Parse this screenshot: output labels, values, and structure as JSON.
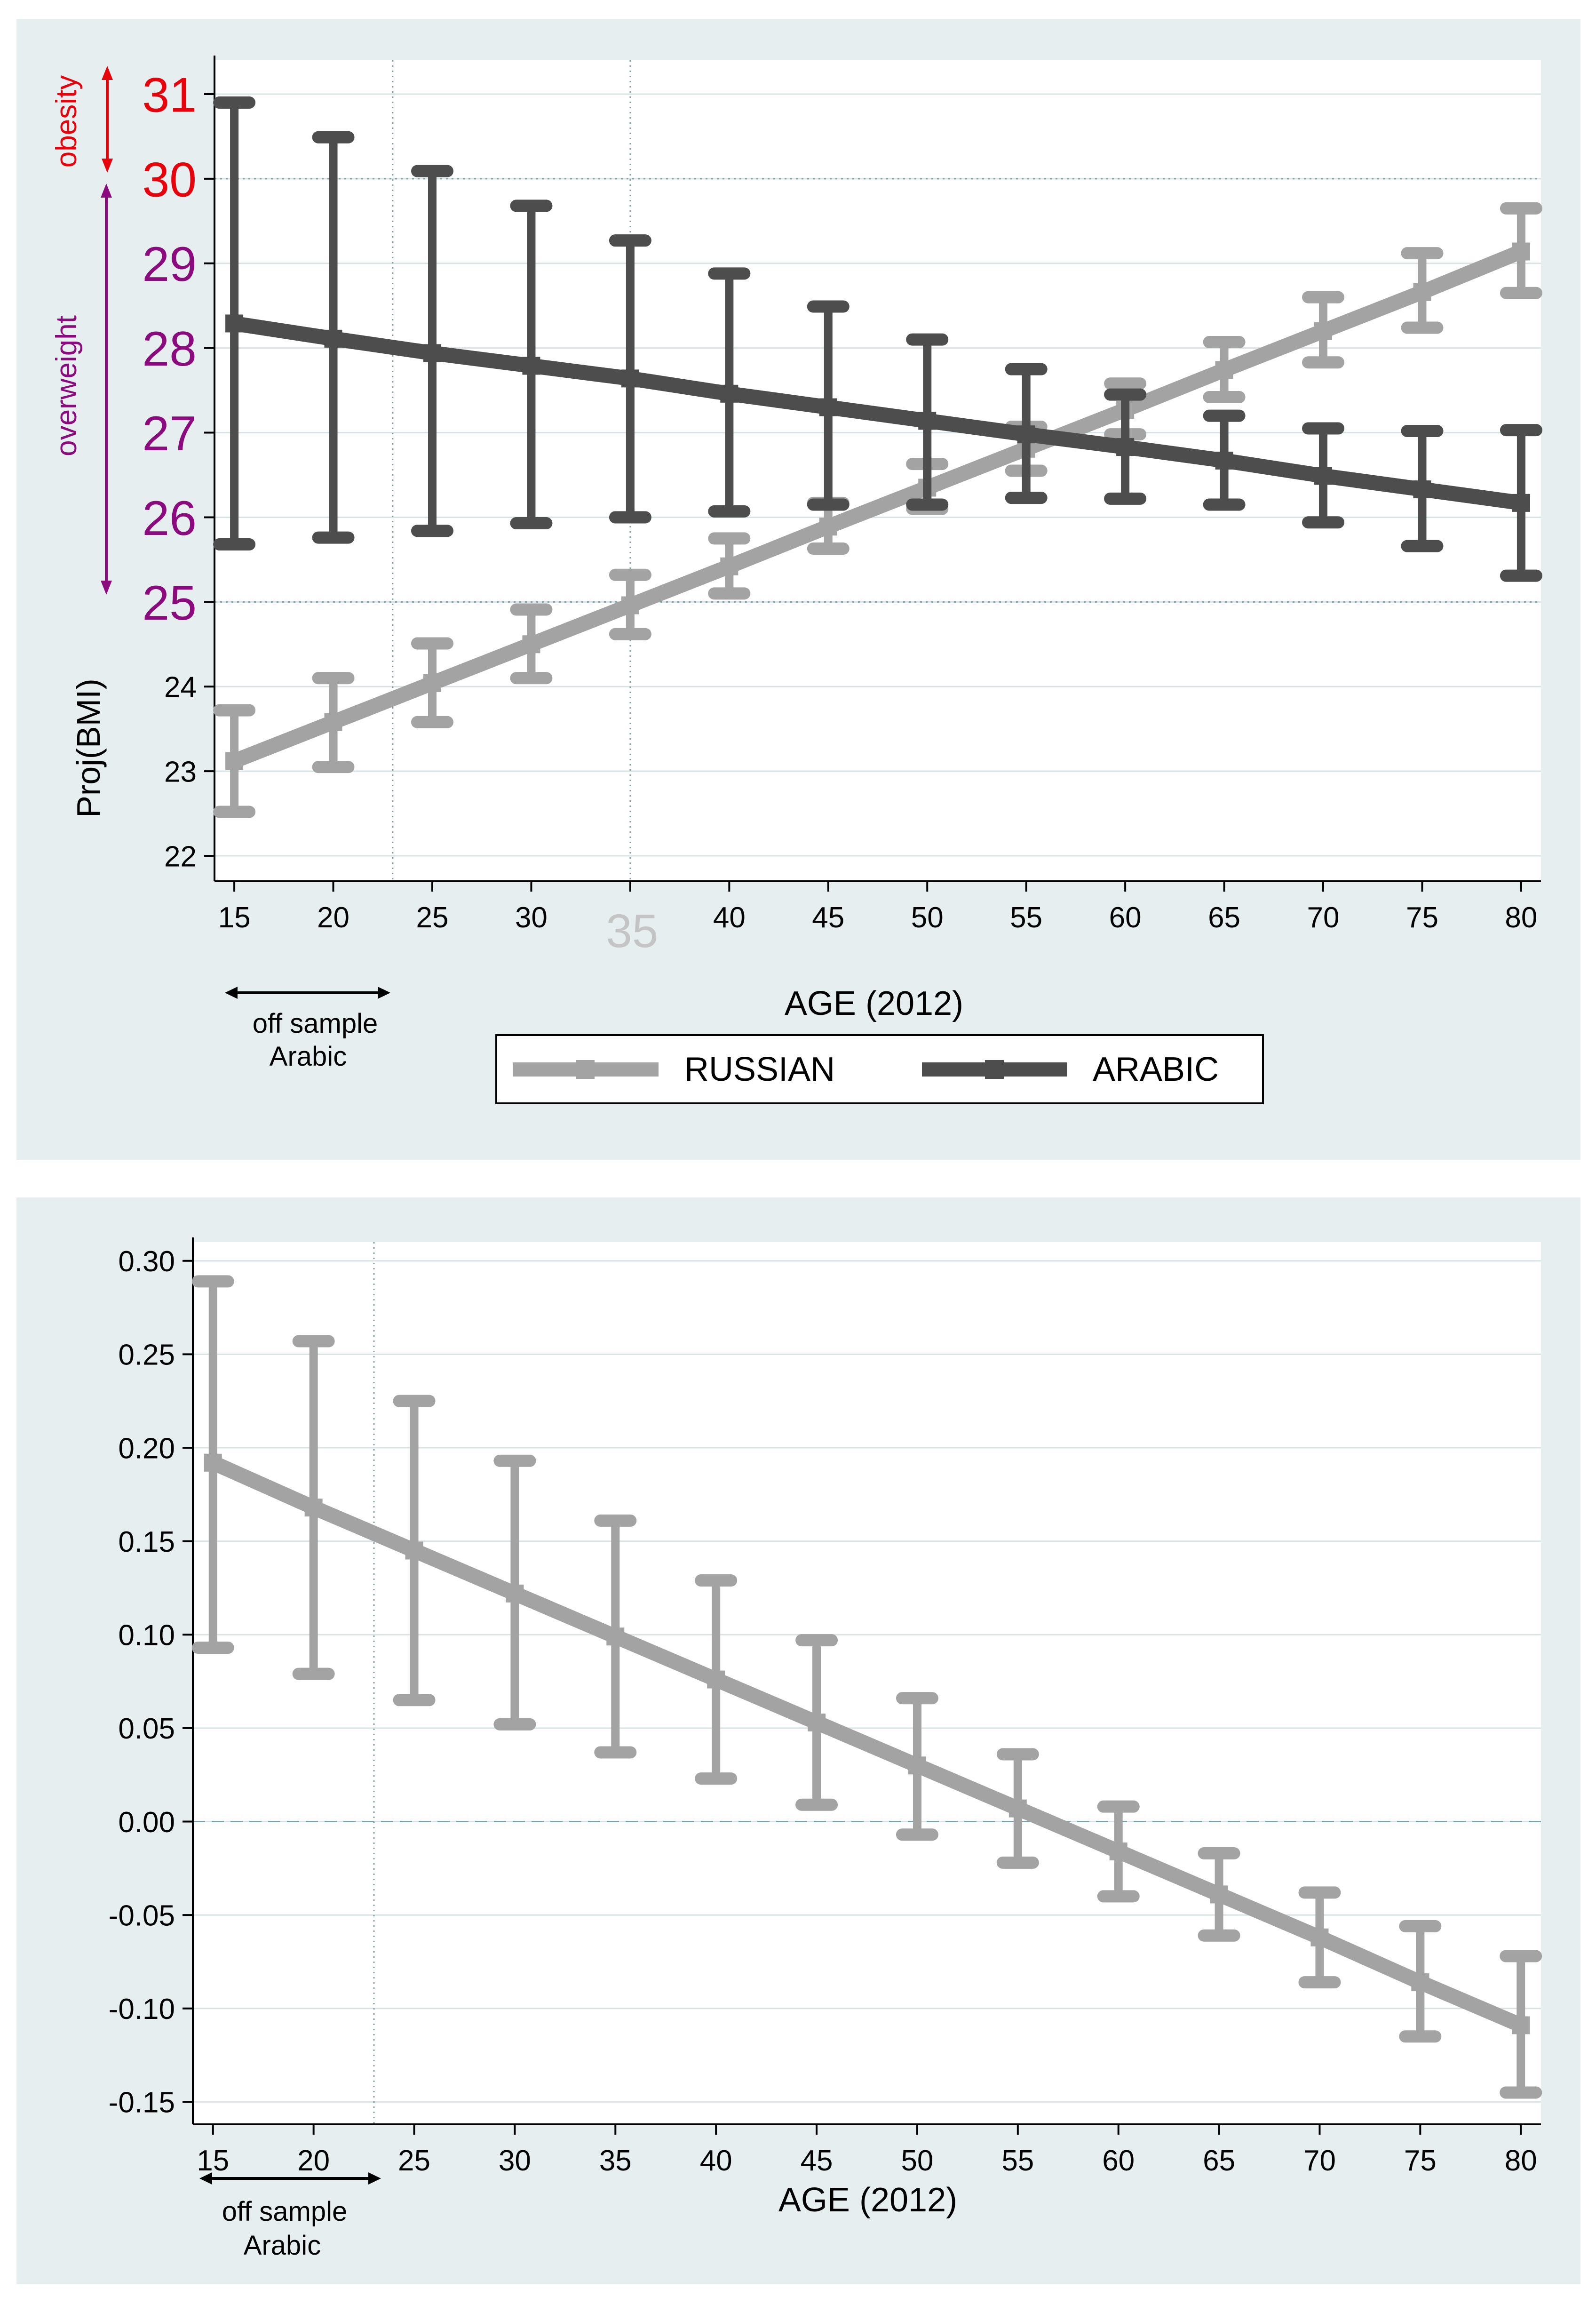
{
  "colors": {
    "panel_bg": "#e6eef0",
    "russian": "#a3a3a3",
    "arabic": "#4d4d4d",
    "obesity": "#e8000b",
    "overweight": "#8b0a7e",
    "axis": "#000000",
    "grid": "#d9e3e6",
    "refline": "#7f9fa8"
  },
  "chart_data": [
    {
      "type": "line",
      "ylabel": "Proj(BMI)",
      "xlabel": "AGE (2012)",
      "ylim": [
        21.7,
        31.4
      ],
      "xlim": [
        14,
        81
      ],
      "x_ticks": [
        "15",
        "20",
        "25",
        "30",
        "35",
        "40",
        "45",
        "50",
        "55",
        "60",
        "65",
        "70",
        "75",
        "80"
      ],
      "x_tick_highlight": "35",
      "y_ticks": [
        "22",
        "23",
        "24",
        "25",
        "26",
        "27",
        "28",
        "29",
        "30",
        "31"
      ],
      "grid": true,
      "reference_lines": {
        "horizontal": [
          25,
          30
        ],
        "vertical": [
          23,
          35
        ]
      },
      "bmi_categories": [
        {
          "label": "obesity",
          "range": [
            30,
            31
          ]
        },
        {
          "label": "overweight",
          "range": [
            25,
            30
          ]
        }
      ],
      "off_sample_note": [
        "off sample",
        "Arabic"
      ],
      "off_sample_range": [
        15,
        23
      ],
      "legend": {
        "position": "bottom",
        "entries": [
          "RUSSIAN",
          "ARABIC"
        ]
      },
      "series": [
        {
          "name": "RUSSIAN",
          "x": [
            15,
            20,
            25,
            30,
            35,
            40,
            45,
            50,
            55,
            60,
            65,
            70,
            75,
            80
          ],
          "y": [
            23.12,
            23.58,
            24.04,
            24.5,
            24.96,
            25.42,
            25.89,
            26.35,
            26.81,
            27.27,
            27.74,
            28.2,
            28.66,
            29.14
          ],
          "lower": [
            22.52,
            23.05,
            23.58,
            24.1,
            24.62,
            25.1,
            25.63,
            26.1,
            26.55,
            26.98,
            27.42,
            27.83,
            28.24,
            28.65
          ],
          "upper": [
            23.72,
            24.1,
            24.51,
            24.91,
            25.32,
            25.75,
            26.17,
            26.63,
            27.07,
            27.58,
            28.07,
            28.6,
            29.12,
            29.65
          ]
        },
        {
          "name": "ARABIC",
          "x": [
            15,
            20,
            25,
            30,
            35,
            40,
            45,
            50,
            55,
            60,
            65,
            70,
            75,
            80
          ],
          "y": [
            28.29,
            28.11,
            27.94,
            27.79,
            27.64,
            27.46,
            27.3,
            27.14,
            26.98,
            26.83,
            26.67,
            26.49,
            26.33,
            26.17
          ],
          "lower": [
            25.68,
            25.76,
            25.84,
            25.93,
            26.0,
            26.07,
            26.15,
            26.15,
            26.23,
            26.22,
            26.15,
            25.94,
            25.66,
            25.31
          ],
          "upper": [
            30.9,
            30.49,
            30.09,
            29.68,
            29.27,
            28.88,
            28.49,
            28.1,
            27.75,
            27.45,
            27.2,
            27.05,
            27.02,
            27.03
          ]
        }
      ]
    },
    {
      "type": "line",
      "xlabel": "AGE (2012)",
      "ylim": [
        -0.162,
        0.31
      ],
      "xlim": [
        14,
        81
      ],
      "x_ticks": [
        "15",
        "20",
        "25",
        "30",
        "35",
        "40",
        "45",
        "50",
        "55",
        "60",
        "65",
        "70",
        "75",
        "80"
      ],
      "y_ticks": [
        "0.30",
        "0.25",
        "0.20",
        "0.15",
        "0.10",
        "0.05",
        "0.00",
        "-0.05",
        "-0.10",
        "-0.15"
      ],
      "grid": true,
      "reference_lines": {
        "horizontal": [
          0
        ],
        "vertical": [
          23
        ]
      },
      "off_sample_note": [
        "off sample",
        "Arabic"
      ],
      "off_sample_range": [
        15,
        23
      ],
      "series": [
        {
          "x": [
            15,
            20,
            25,
            30,
            35,
            40,
            45,
            50,
            55,
            60,
            65,
            70,
            75,
            80
          ],
          "y": [
            0.192,
            0.168,
            0.145,
            0.122,
            0.099,
            0.076,
            0.053,
            0.03,
            0.007,
            -0.016,
            -0.039,
            -0.062,
            -0.086,
            -0.109
          ],
          "lower": [
            0.093,
            0.079,
            0.065,
            0.052,
            0.037,
            0.023,
            0.009,
            -0.007,
            -0.022,
            -0.04,
            -0.061,
            -0.086,
            -0.115,
            -0.145
          ],
          "upper": [
            0.289,
            0.257,
            0.225,
            0.193,
            0.161,
            0.129,
            0.097,
            0.066,
            0.036,
            0.008,
            -0.017,
            -0.038,
            -0.056,
            -0.072
          ]
        }
      ]
    }
  ]
}
